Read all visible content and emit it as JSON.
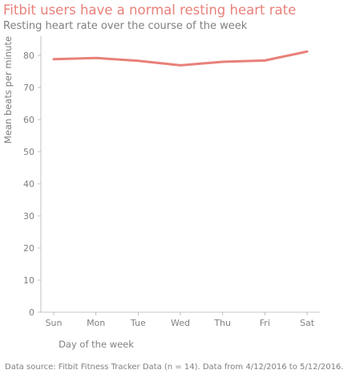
{
  "chart_data": {
    "type": "line",
    "title": "Fitbit users have a normal resting heart rate",
    "subtitle": "Resting heart rate over the course of the week",
    "xlabel": "Day of the week",
    "ylabel": "Mean beats per minute",
    "categories": [
      "Sun",
      "Mon",
      "Tue",
      "Wed",
      "Thu",
      "Fri",
      "Sat"
    ],
    "series": [
      {
        "values": [
          78.8,
          79.2,
          78.3,
          76.9,
          78.0,
          78.4,
          81.2
        ]
      }
    ],
    "ylim": [
      0,
      86
    ],
    "yticks": [
      0,
      10,
      20,
      30,
      40,
      50,
      60,
      70,
      80
    ],
    "grid": false,
    "legend": "none",
    "line_color": "#e8807a",
    "title_color": "#e8807a",
    "text_color": "#808080",
    "source_note": "Data source: Fitbit Fitness Tracker Data (n = 14). Data from 4/12/2016 to 5/12/2016."
  }
}
